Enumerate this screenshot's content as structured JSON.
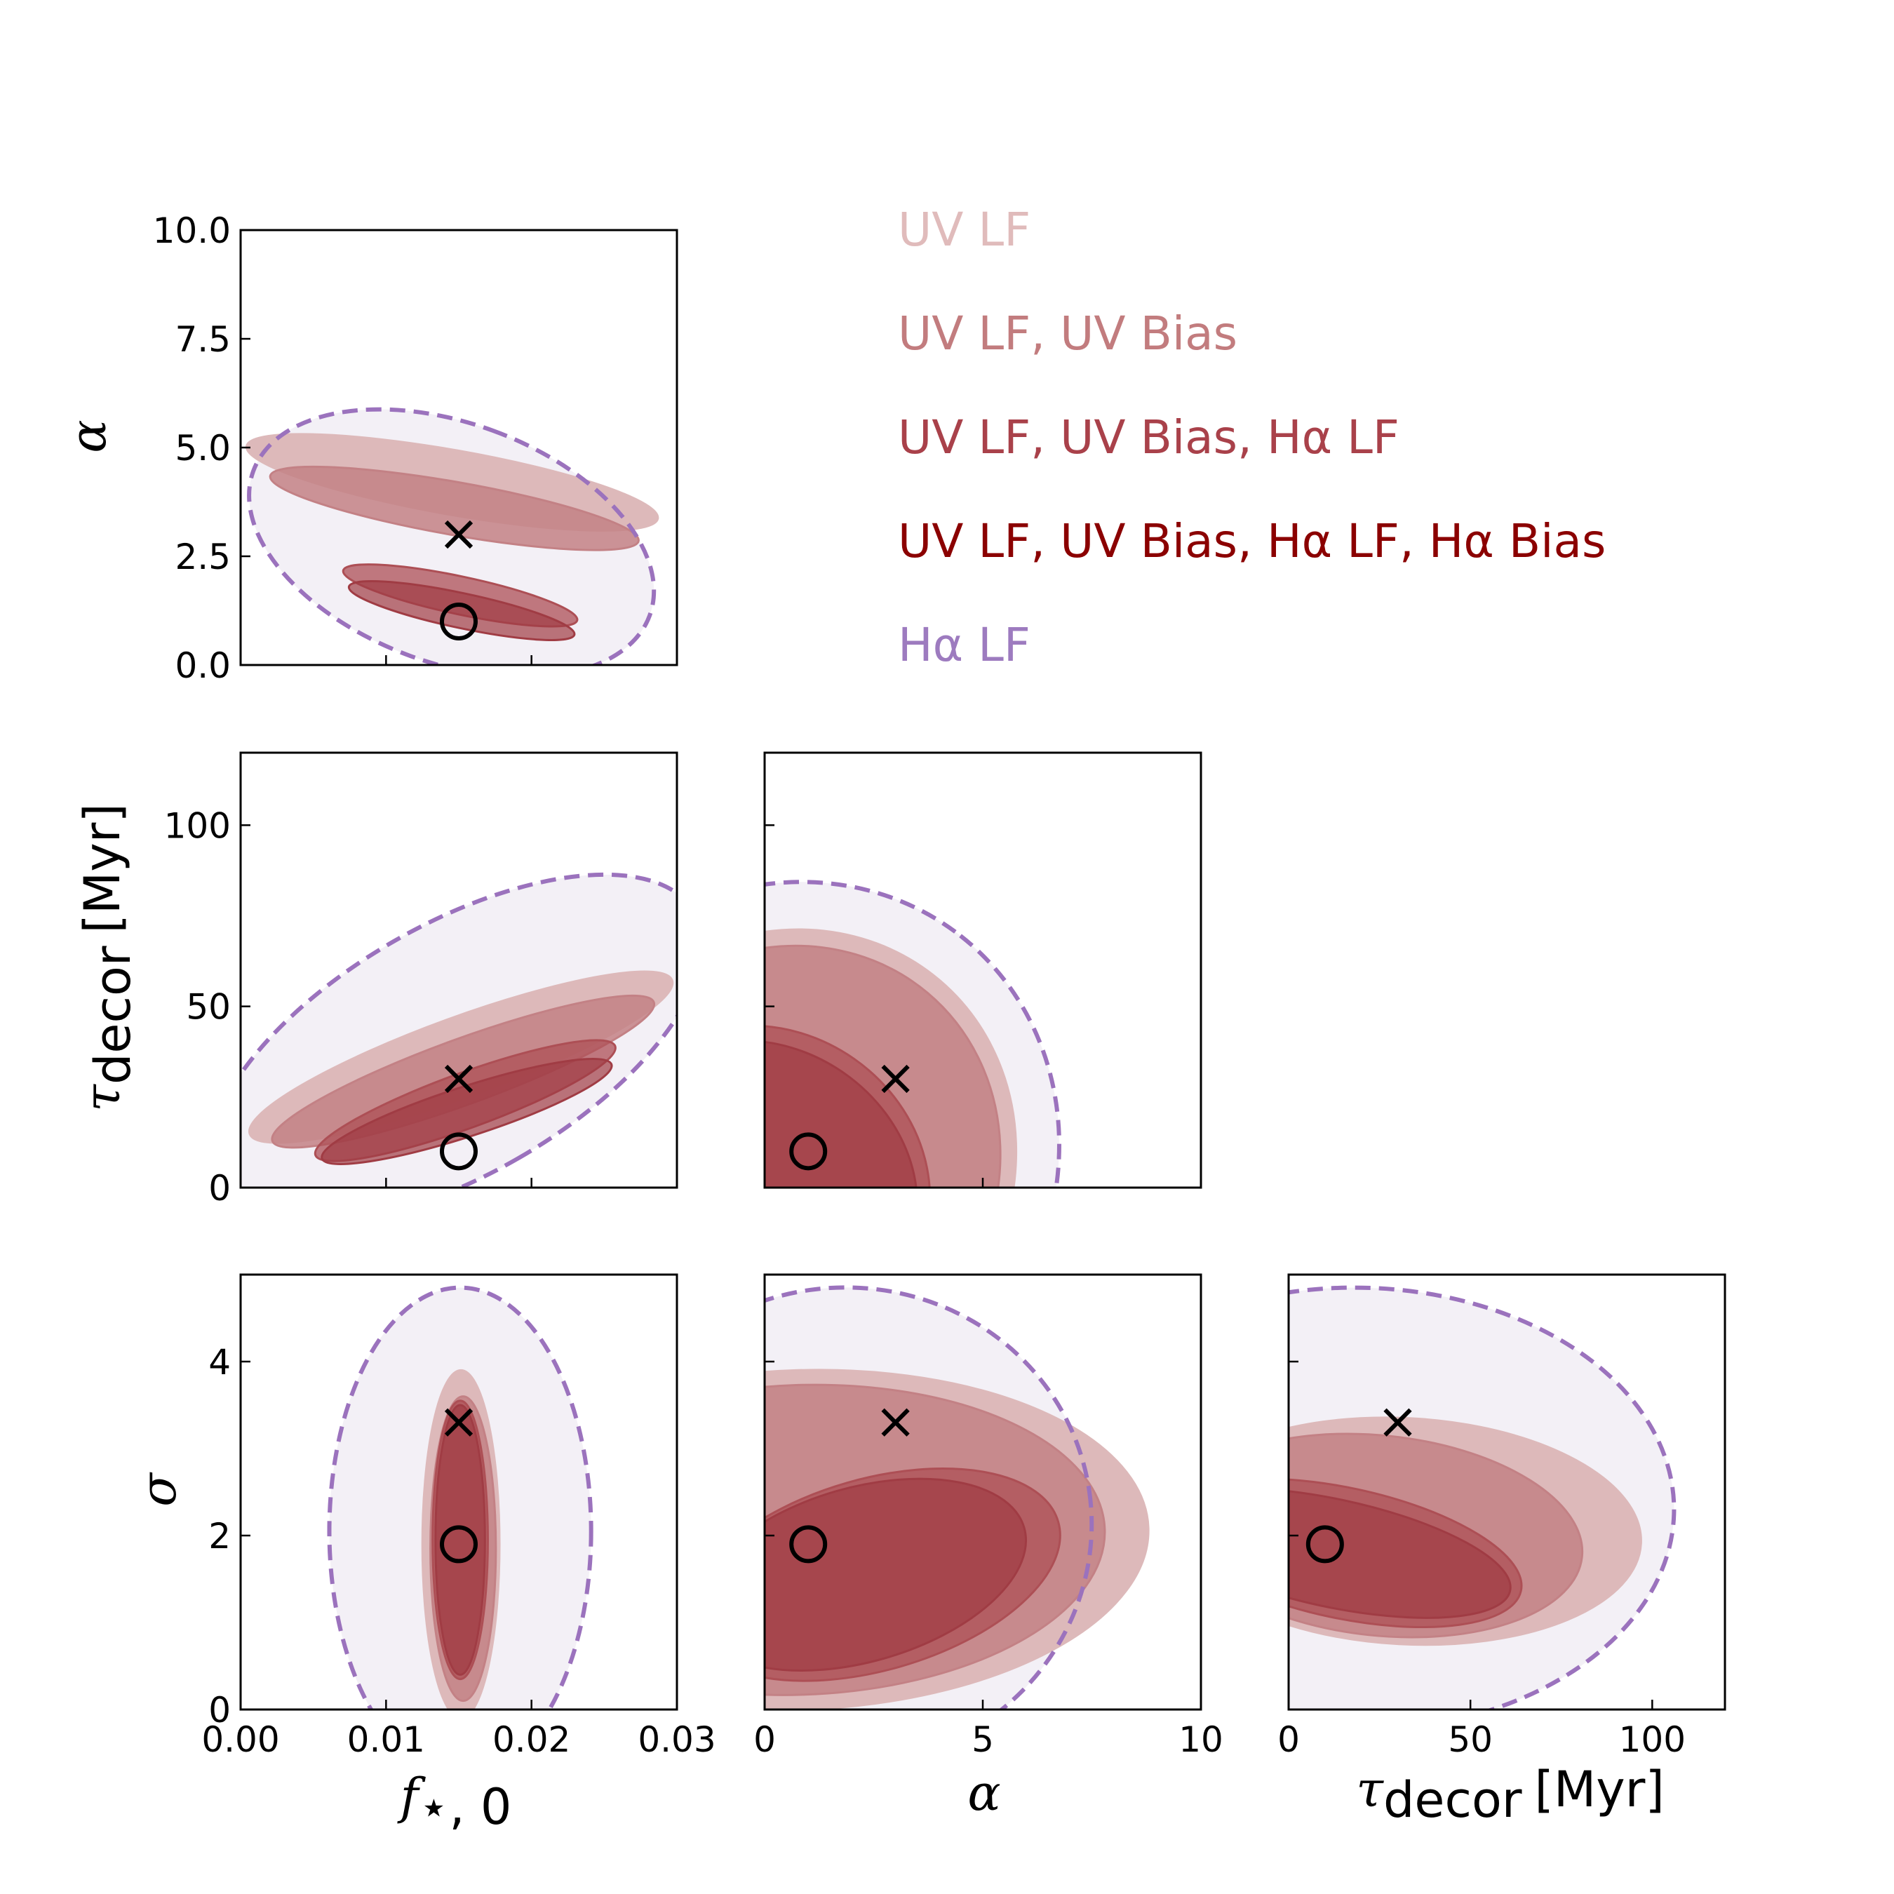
{
  "chart_data": {
    "type": "corner",
    "parameters": [
      {
        "key": "fstar",
        "label": "f",
        "label_sub": "⋆, 0",
        "range": [
          0,
          0.03
        ],
        "ticks": [
          0,
          0.01,
          0.02,
          0.03
        ],
        "tick_labels": [
          "0.00",
          "0.01",
          "0.02",
          "0.03"
        ]
      },
      {
        "key": "alpha",
        "label": "α",
        "range_x": [
          0,
          10
        ],
        "range_y": [
          0,
          10
        ],
        "ticks_x": [
          0,
          5,
          10
        ],
        "tick_labels_x": [
          "0",
          "5",
          "10"
        ],
        "ticks_y": [
          0,
          2.5,
          5,
          7.5,
          10
        ],
        "tick_labels_y": [
          "0.0",
          "2.5",
          "5.0",
          "7.5",
          "10.0"
        ]
      },
      {
        "key": "tau",
        "label": "τ",
        "label_sub": "decor",
        "label_unit": "[Myr]",
        "range": [
          0,
          120
        ],
        "ticks": [
          0,
          50,
          100
        ],
        "tick_labels": [
          "0",
          "50",
          "100"
        ]
      },
      {
        "key": "sigma",
        "label": "σ",
        "range": [
          0,
          5
        ],
        "ticks": [
          0,
          2,
          4
        ],
        "tick_labels": [
          "0",
          "2",
          "4"
        ]
      }
    ],
    "legend": [
      {
        "label": "UV LF",
        "color": "#e0bbbb"
      },
      {
        "label": "UV LF, UV Bias",
        "color": "#c27c7e"
      },
      {
        "label": "UV LF, UV Bias, Hα LF",
        "color": "#a9414a"
      },
      {
        "label": "UV LF, UV Bias, Hα LF, Hα Bias",
        "color": "#8b0000"
      },
      {
        "label": "Hα LF",
        "color": "#9d7bbf"
      }
    ],
    "colors": {
      "uv_lf": "#ddb9ba",
      "uv_bias": "#c38185",
      "ha_lf_combo": "#ad4f55",
      "ha_bias_combo": "#a03c44",
      "ha_only_fill": "#f3f0f6",
      "ha_only_line": "#9b72bd"
    },
    "markers": {
      "cross": {
        "fstar": 0.015,
        "alpha": 3.0,
        "tau": 30,
        "sigma": 3.3
      },
      "circle": {
        "fstar": 0.015,
        "alpha": 1.0,
        "tau": 10,
        "sigma": 1.9
      }
    },
    "panels": [
      {
        "name": "alpha-vs-fstar",
        "x": "fstar",
        "y": "alpha",
        "contours": [
          {
            "series": "ha_lf",
            "cx": 0.0145,
            "cy": 2.8,
            "sx": 0.00825,
            "sy": 4.85,
            "angle": -70
          },
          {
            "series": "uv_lf",
            "cx": 0.01455,
            "cy": 4.2,
            "sx": 0.00222,
            "sy": 4.8,
            "angle": -80
          },
          {
            "series": "uv_bias",
            "cx": 0.0147,
            "cy": 3.6,
            "sx": 0.00182,
            "sy": 4.3,
            "angle": -80
          },
          {
            "series": "ha_lf_combo",
            "cx": 0.0151,
            "cy": 1.6,
            "sx": 0.0013,
            "sy": 2.75,
            "angle": -78
          },
          {
            "series": "ha_bias_combo",
            "cx": 0.0152,
            "cy": 1.25,
            "sx": 0.0012,
            "sy": 2.65,
            "angle": -78
          }
        ]
      },
      {
        "name": "tau-vs-fstar",
        "x": "fstar",
        "y": "tau",
        "contours": [
          {
            "series": "ha_lf",
            "cx": 0.0148,
            "cy": 38,
            "sx": 0.0086,
            "sy": 76,
            "angle": 60
          },
          {
            "series": "uv_lf",
            "cx": 0.01515,
            "cy": 36,
            "sx": 0.00275,
            "sy": 62,
            "angle": 70
          },
          {
            "series": "uv_bias",
            "cx": 0.0153,
            "cy": 32,
            "sx": 0.00225,
            "sy": 56,
            "angle": 70
          },
          {
            "series": "ha_lf_combo",
            "cx": 0.01545,
            "cy": 24,
            "sx": 0.0019,
            "sy": 44,
            "angle": 70
          },
          {
            "series": "ha_bias_combo",
            "cx": 0.01555,
            "cy": 21,
            "sx": 0.0017,
            "sy": 42,
            "angle": 72
          }
        ]
      },
      {
        "name": "tau-vs-alpha",
        "x": "alpha",
        "y": "tau",
        "contours": [
          {
            "series": "ha_lf",
            "cx": 0.3,
            "cy": 5,
            "sx": 6.8,
            "sy": 75,
            "angle": -52
          },
          {
            "series": "uv_lf",
            "cx": 0.2,
            "cy": 3,
            "sx": 5.9,
            "sy": 64,
            "angle": -50
          },
          {
            "series": "uv_bias",
            "cx": 0.2,
            "cy": 3,
            "sx": 5.5,
            "sy": 60,
            "angle": -50
          },
          {
            "series": "ha_lf_combo",
            "cx": 0.1,
            "cy": 2,
            "sx": 3.4,
            "sy": 46,
            "angle": -55
          },
          {
            "series": "ha_bias_combo",
            "cx": 0.1,
            "cy": 2,
            "sx": 3.0,
            "sy": 43,
            "angle": -55
          }
        ]
      },
      {
        "name": "sigma-vs-fstar",
        "x": "fstar",
        "y": "sigma",
        "contours": [
          {
            "series": "ha_lf",
            "cx": 0.0151,
            "cy": 2.05,
            "sx": 0.009,
            "sy": 2.8,
            "angle": 0
          },
          {
            "series": "uv_lf",
            "cx": 0.01515,
            "cy": 1.9,
            "sx": 0.00265,
            "sy": 2.0,
            "angle": 0
          },
          {
            "series": "uv_bias",
            "cx": 0.0153,
            "cy": 1.85,
            "sx": 0.00225,
            "sy": 1.75,
            "angle": 0
          },
          {
            "series": "ha_lf_combo",
            "cx": 0.0151,
            "cy": 1.95,
            "sx": 0.0019,
            "sy": 1.6,
            "angle": 0
          },
          {
            "series": "ha_bias_combo",
            "cx": 0.0151,
            "cy": 1.95,
            "sx": 0.0017,
            "sy": 1.55,
            "angle": 0
          }
        ]
      },
      {
        "name": "sigma-vs-alpha",
        "x": "alpha",
        "y": "sigma",
        "contours": [
          {
            "series": "ha_lf",
            "cx": 1.8,
            "cy": 2.1,
            "sx": 5.7,
            "sy": 2.75,
            "angle": -8
          },
          {
            "series": "uv_lf",
            "cx": 0.8,
            "cy": 1.95,
            "sx": 8.0,
            "sy": 1.95,
            "angle": -2
          },
          {
            "series": "uv_bias",
            "cx": 0.8,
            "cy": 1.95,
            "sx": 7.0,
            "sy": 1.78,
            "angle": -2
          },
          {
            "series": "ha_lf_combo",
            "cx": 2.5,
            "cy": 1.55,
            "sx": 4.4,
            "sy": 1.1,
            "angle": -16
          },
          {
            "series": "ha_bias_combo",
            "cx": 2.2,
            "cy": 1.55,
            "sx": 3.9,
            "sy": 1.0,
            "angle": -16
          }
        ]
      },
      {
        "name": "sigma-vs-tau",
        "x": "tau",
        "y": "sigma",
        "contours": [
          {
            "series": "ha_lf",
            "cx": 18,
            "cy": 2.3,
            "sx": 88,
            "sy": 2.55,
            "angle": 0
          },
          {
            "series": "uv_lf",
            "cx": 32,
            "cy": 2.05,
            "sx": 65,
            "sy": 1.3,
            "angle": 3
          },
          {
            "series": "uv_bias",
            "cx": 25,
            "cy": 2.0,
            "sx": 56,
            "sy": 1.15,
            "angle": 6
          },
          {
            "series": "ha_lf_combo",
            "cx": 15,
            "cy": 1.8,
            "sx": 50,
            "sy": 0.75,
            "angle": 12
          },
          {
            "series": "ha_bias_combo",
            "cx": 12,
            "cy": 1.8,
            "sx": 50,
            "sy": 0.62,
            "angle": 12
          }
        ]
      }
    ]
  }
}
